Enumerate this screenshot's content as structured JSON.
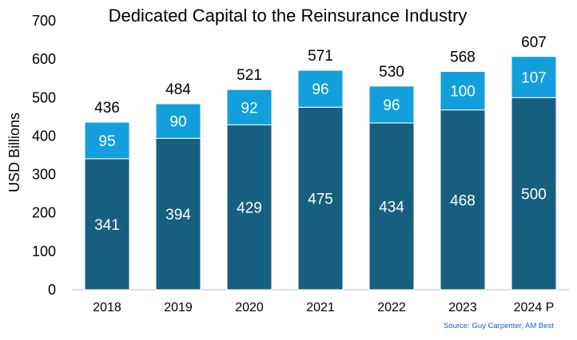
{
  "chart_data": {
    "type": "bar",
    "stacked": true,
    "title": "Dedicated Capital to the Reinsurance Industry",
    "ylabel": "USD Billions",
    "xlabel": "",
    "ylim": [
      0,
      700
    ],
    "yticks": [
      0,
      100,
      200,
      300,
      400,
      500,
      600,
      700
    ],
    "grid": false,
    "categories": [
      "2018",
      "2019",
      "2020",
      "2021",
      "2022",
      "2023",
      "2024 P"
    ],
    "series": [
      {
        "values": [
          341,
          394,
          429,
          475,
          434,
          468,
          500
        ],
        "color": "#175f7f"
      },
      {
        "values": [
          95,
          90,
          92,
          96,
          96,
          100,
          107
        ],
        "color": "#129fdc"
      }
    ],
    "totals": [
      436,
      484,
      521,
      571,
      530,
      568,
      607
    ],
    "source": "Source: Guy Carpenter, AM Best",
    "source_color": "#1f5fa8"
  }
}
